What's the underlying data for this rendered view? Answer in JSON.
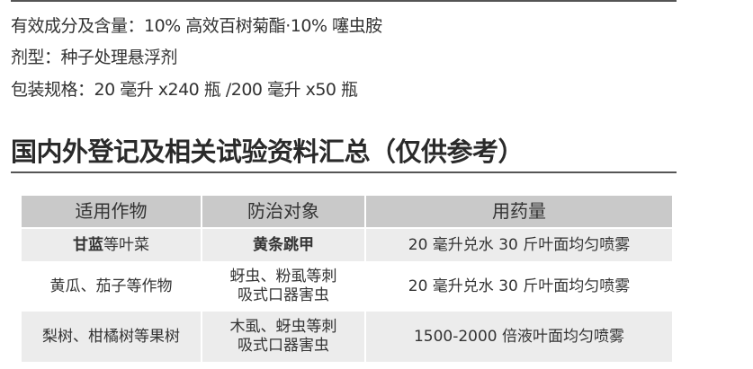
{
  "info": {
    "ingredient": "有效成分及含量：10% 高效百树菊酯·10% 噻虫胺",
    "formulation": "剂型：种子处理悬浮剂",
    "packaging": "包装规格：20 毫升 x240 瓶 /200 毫升 x50 瓶"
  },
  "section_title": "国内外登记及相关试验资料汇总（仅供参考）",
  "table": {
    "headers": [
      "适用作物",
      "防治对象",
      "用药量"
    ],
    "rows": [
      {
        "crop_bold": "甘蓝",
        "crop": "等叶菜",
        "target_bold": "黄条跳甲",
        "target_1": "",
        "target_2": "",
        "dosage": "20 毫升兑水 30 斤叶面均匀喷雾"
      },
      {
        "crop_bold": "",
        "crop": "黄瓜、茄子等作物",
        "target_bold": "",
        "target_1": "蚜虫、粉虱等刺",
        "target_2": "吸式口器害虫",
        "dosage": "20 毫升兑水 30 斤叶面均匀喷雾"
      },
      {
        "crop_bold": "",
        "crop": "梨树、柑橘树等果树",
        "target_bold": "",
        "target_1": "木虱、蚜虫等刺",
        "target_2": "吸式口器害虫",
        "dosage": "1500-2000 倍液叶面均匀喷雾"
      }
    ]
  }
}
